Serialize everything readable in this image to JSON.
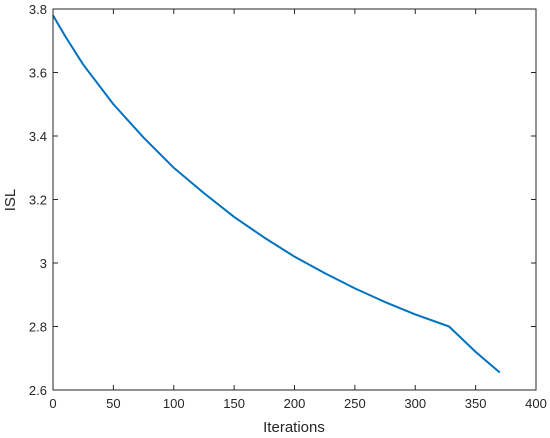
{
  "chart_data": {
    "type": "line",
    "title": "",
    "xlabel": "Iterations",
    "ylabel": "ISL",
    "xlim": [
      0,
      400
    ],
    "ylim": [
      2.6,
      3.8
    ],
    "xticks": [
      0,
      50,
      100,
      150,
      200,
      250,
      300,
      350,
      400
    ],
    "yticks": [
      2.6,
      2.8,
      3,
      3.2,
      3.4,
      3.6,
      3.8
    ],
    "xtick_labels": [
      "0",
      "50",
      "100",
      "150",
      "200",
      "250",
      "300",
      "350",
      "400"
    ],
    "ytick_labels": [
      "2.6",
      "2.8",
      "3",
      "3.2",
      "3.4",
      "3.6",
      "3.8"
    ],
    "grid": false,
    "legend": "none",
    "series": [
      {
        "color": "#0072BD",
        "x": [
          0,
          10,
          25,
          50,
          75,
          100,
          125,
          150,
          175,
          200,
          225,
          250,
          275,
          300,
          328,
          350,
          370
        ],
        "y": [
          3.78,
          3.715,
          3.625,
          3.5,
          3.395,
          3.3,
          3.22,
          3.145,
          3.08,
          3.02,
          2.968,
          2.92,
          2.877,
          2.838,
          2.8,
          2.72,
          2.655
        ]
      }
    ]
  }
}
